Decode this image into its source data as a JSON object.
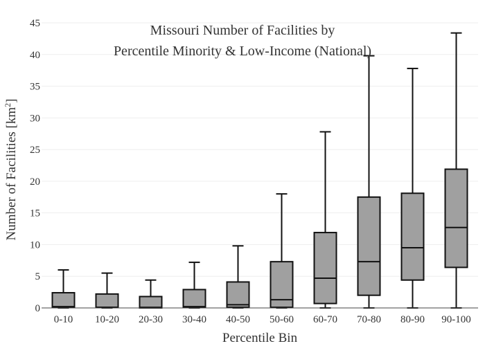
{
  "chart_data": {
    "type": "box",
    "title_lines": [
      "Missouri Number of Facilities by",
      "Percentile Minority & Low-Income (National)"
    ],
    "xlabel": "Percentile Bin",
    "ylabel": "Number of Facilities",
    "ylabel_unit": "km",
    "ylabel_unit_sup": "2",
    "ylim": [
      0,
      45
    ],
    "yticks": [
      0,
      5,
      10,
      15,
      20,
      25,
      30,
      35,
      40,
      45
    ],
    "grid": true,
    "categories": [
      "0-10",
      "10-20",
      "20-30",
      "30-40",
      "40-50",
      "50-60",
      "60-70",
      "70-80",
      "80-90",
      "90-100"
    ],
    "boxes": [
      {
        "min": 0,
        "q1": 0.1,
        "median": 0.2,
        "q3": 2.4,
        "max": 6.0
      },
      {
        "min": 0,
        "q1": 0.1,
        "median": 0.1,
        "q3": 2.2,
        "max": 5.5
      },
      {
        "min": 0,
        "q1": 0.0,
        "median": 0.1,
        "q3": 1.8,
        "max": 4.4
      },
      {
        "min": 0,
        "q1": 0.1,
        "median": 0.2,
        "q3": 2.9,
        "max": 7.2
      },
      {
        "min": 0,
        "q1": 0.1,
        "median": 0.5,
        "q3": 4.1,
        "max": 9.8
      },
      {
        "min": 0,
        "q1": 0.1,
        "median": 1.3,
        "q3": 7.3,
        "max": 18.0
      },
      {
        "min": 0,
        "q1": 0.7,
        "median": 4.7,
        "q3": 11.9,
        "max": 27.8
      },
      {
        "min": 0,
        "q1": 2.0,
        "median": 7.3,
        "q3": 17.5,
        "max": 39.8
      },
      {
        "min": 0,
        "q1": 4.4,
        "median": 9.5,
        "q3": 18.1,
        "max": 37.8
      },
      {
        "min": 0,
        "q1": 6.4,
        "median": 12.7,
        "q3": 21.9,
        "max": 43.4
      }
    ]
  }
}
